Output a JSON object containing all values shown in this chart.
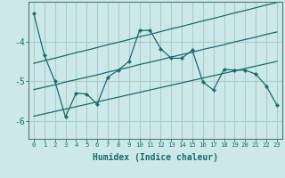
{
  "xlabel": "Humidex (Indice chaleur)",
  "bg_color": "#cce8e8",
  "grid_color": "#aacccc",
  "line_color": "#1a6b6b",
  "x": [
    0,
    1,
    2,
    3,
    4,
    5,
    6,
    7,
    8,
    9,
    10,
    11,
    12,
    13,
    14,
    15,
    16,
    17,
    18,
    19,
    20,
    21,
    22,
    23
  ],
  "y_main": [
    -3.3,
    -4.35,
    -5.0,
    -5.9,
    -5.3,
    -5.32,
    -5.58,
    -4.9,
    -4.72,
    -4.5,
    -3.72,
    -3.72,
    -4.18,
    -4.42,
    -4.42,
    -4.22,
    -5.02,
    -5.22,
    -4.7,
    -4.72,
    -4.72,
    -4.82,
    -5.12,
    -5.6
  ],
  "y_upper": [
    -4.55,
    -4.48,
    -4.42,
    -4.35,
    -4.28,
    -4.22,
    -4.15,
    -4.08,
    -4.02,
    -3.95,
    -3.88,
    -3.82,
    -3.75,
    -3.68,
    -3.62,
    -3.55,
    -3.48,
    -3.42,
    -3.35,
    -3.28,
    -3.22,
    -3.15,
    -3.08,
    -3.02
  ],
  "y_lower": [
    -5.88,
    -5.82,
    -5.76,
    -5.7,
    -5.64,
    -5.58,
    -5.52,
    -5.46,
    -5.4,
    -5.34,
    -5.28,
    -5.22,
    -5.16,
    -5.1,
    -5.04,
    -4.98,
    -4.92,
    -4.86,
    -4.8,
    -4.74,
    -4.68,
    -4.62,
    -4.56,
    -4.5
  ],
  "y_mid": [
    -5.21,
    -5.15,
    -5.09,
    -5.02,
    -4.96,
    -4.9,
    -4.84,
    -4.77,
    -4.71,
    -4.65,
    -4.58,
    -4.52,
    -4.46,
    -4.39,
    -4.33,
    -4.27,
    -4.2,
    -4.14,
    -4.08,
    -4.01,
    -3.95,
    -3.89,
    -3.82,
    -3.76
  ],
  "ylim": [
    -6.45,
    -3.0
  ],
  "xlim": [
    -0.5,
    23.5
  ],
  "yticks": [
    -6,
    -5,
    -4
  ],
  "xticks": [
    0,
    1,
    2,
    3,
    4,
    5,
    6,
    7,
    8,
    9,
    10,
    11,
    12,
    13,
    14,
    15,
    16,
    17,
    18,
    19,
    20,
    21,
    22,
    23
  ]
}
